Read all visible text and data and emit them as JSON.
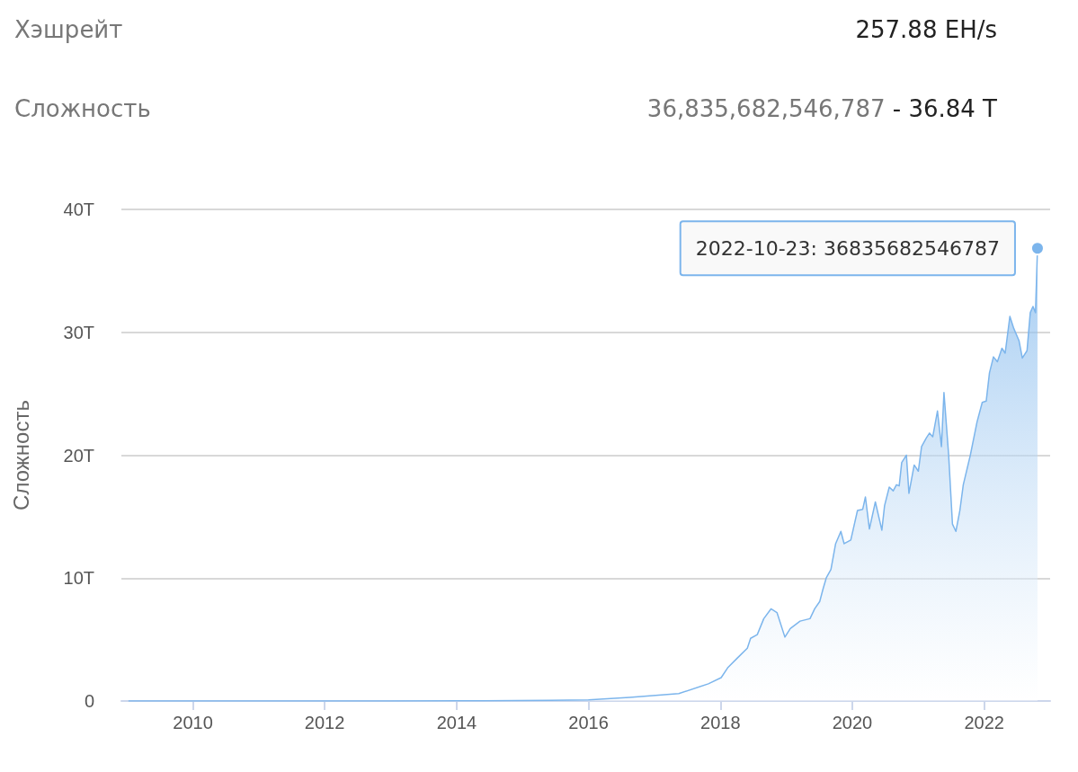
{
  "chart_data": {
    "type": "area",
    "ylabel": "Сложность",
    "annotations": [
      "Хэшрейт",
      "257.88 EH/s",
      "Сложность",
      "36,835,682,546,787",
      "- 36.84 T",
      {
        "text": "2022-10-23: 36835682546787",
        "x": "2022-10-23",
        "y": 36835682546787
      }
    ],
    "x": [
      "2009-01-09",
      "2011-01-01",
      "2013-01-01",
      "2014-06-01",
      "2015-06-01",
      "2016-01-01",
      "2016-08-15",
      "2017-05-15",
      "2017-10-26",
      "2018-01-05",
      "2018-02-10",
      "2018-04-05",
      "2018-05-30",
      "2018-06-17",
      "2018-07-24",
      "2018-08-29",
      "2018-10-08",
      "2018-11-10",
      "2018-12-24",
      "2019-01-23",
      "2019-03-18",
      "2019-05-12",
      "2019-06-07",
      "2019-07-05",
      "2019-07-23",
      "2019-08-11",
      "2019-09-05",
      "2019-10-01",
      "2019-10-30",
      "2019-11-17",
      "2019-12-24",
      "2020-01-30",
      "2020-02-28",
      "2020-03-14",
      "2020-04-05",
      "2020-05-08",
      "2020-06-13",
      "2020-06-28",
      "2020-07-24",
      "2020-08-15",
      "2020-09-02",
      "2020-09-17",
      "2020-10-01",
      "2020-10-27",
      "2020-11-10",
      "2020-12-09",
      "2021-01-01",
      "2021-01-19",
      "2021-02-14",
      "2021-03-04",
      "2021-03-22",
      "2021-04-17",
      "2021-05-09",
      "2021-05-23",
      "2021-06-18",
      "2021-07-09",
      "2021-07-28",
      "2021-08-19",
      "2021-09-07",
      "2021-10-16",
      "2021-11-22",
      "2021-12-21",
      "2022-01-12",
      "2022-01-30",
      "2022-02-21",
      "2022-03-15",
      "2022-04-09",
      "2022-04-27",
      "2022-05-23",
      "2022-06-14",
      "2022-07-13",
      "2022-07-31",
      "2022-08-26",
      "2022-09-13",
      "2022-09-28",
      "2022-10-12",
      "2022-10-23"
    ],
    "series": [
      {
        "color": "#7cb5ec",
        "values": [
          0,
          0,
          0,
          20000000000.0,
          50000000000.0,
          100000000000.0,
          290000000000.0,
          600000000000.0,
          1400000000000.0,
          1900000000000.0,
          2700000000000.0,
          3500000000000.0,
          4300000000000.0,
          5100000000000.0,
          5400000000000.0,
          6700000000000.0,
          7500000000000.0,
          7200000000000.0,
          5200000000000.0,
          5900000000000.0,
          6500000000000.0,
          6700000000000.0,
          7500000000000.0,
          8100000000000.0,
          9100000000000.0,
          10050000000000.0,
          10700000000000.0,
          12800000000000.0,
          13800000000000.0,
          12800000000000.0,
          13100000000000.0,
          15500000000000.0,
          15600000000000.0,
          16600000000000.0,
          14000000000000.0,
          16200000000000.0,
          13900000000000.0,
          15900000000000.0,
          17400000000000.0,
          17100000000000.0,
          17600000000000.0,
          17500000000000.0,
          19400000000000.0,
          20000000000000.0,
          16900000000000.0,
          19200000000000.0,
          18700000000000.0,
          20700000000000.0,
          21400000000000.0,
          21800000000000.0,
          21500000000000.0,
          23600000000000.0,
          20700000000000.0,
          25100000000000.0,
          20000000000000.0,
          14400000000000.0,
          13800000000000.0,
          15500000000000.0,
          17600000000000.0,
          20000000000000.0,
          22700000000000.0,
          24300000000000.0,
          24400000000000.0,
          26700000000000.0,
          28000000000000.0,
          27600000000000.0,
          28700000000000.0,
          28300000000000.0,
          31300000000000.0,
          30300000000000.0,
          29300000000000.0,
          27900000000000.0,
          28500000000000.0,
          31600000000000.0,
          32100000000000.0,
          31600000000000.0,
          36835682546787
        ]
      }
    ],
    "xlim": [
      "2008-12-01",
      "2023-01-01"
    ],
    "xticks": [
      {
        "value": "2010-01-01",
        "label": "2010"
      },
      {
        "value": "2012-01-01",
        "label": "2012"
      },
      {
        "value": "2014-01-01",
        "label": "2014"
      },
      {
        "value": "2016-01-01",
        "label": "2016"
      },
      {
        "value": "2018-01-01",
        "label": "2018"
      },
      {
        "value": "2020-01-01",
        "label": "2020"
      },
      {
        "value": "2022-01-01",
        "label": "2022"
      }
    ],
    "ylim": [
      0,
      40000000000000
    ],
    "yticks": [
      {
        "value": 0,
        "label": "0"
      },
      {
        "value": 10000000000000,
        "label": "10T"
      },
      {
        "value": 20000000000000,
        "label": "20T"
      },
      {
        "value": 30000000000000,
        "label": "30T"
      },
      {
        "value": 40000000000000,
        "label": "40T"
      }
    ],
    "grid": "y",
    "marker": "none"
  }
}
